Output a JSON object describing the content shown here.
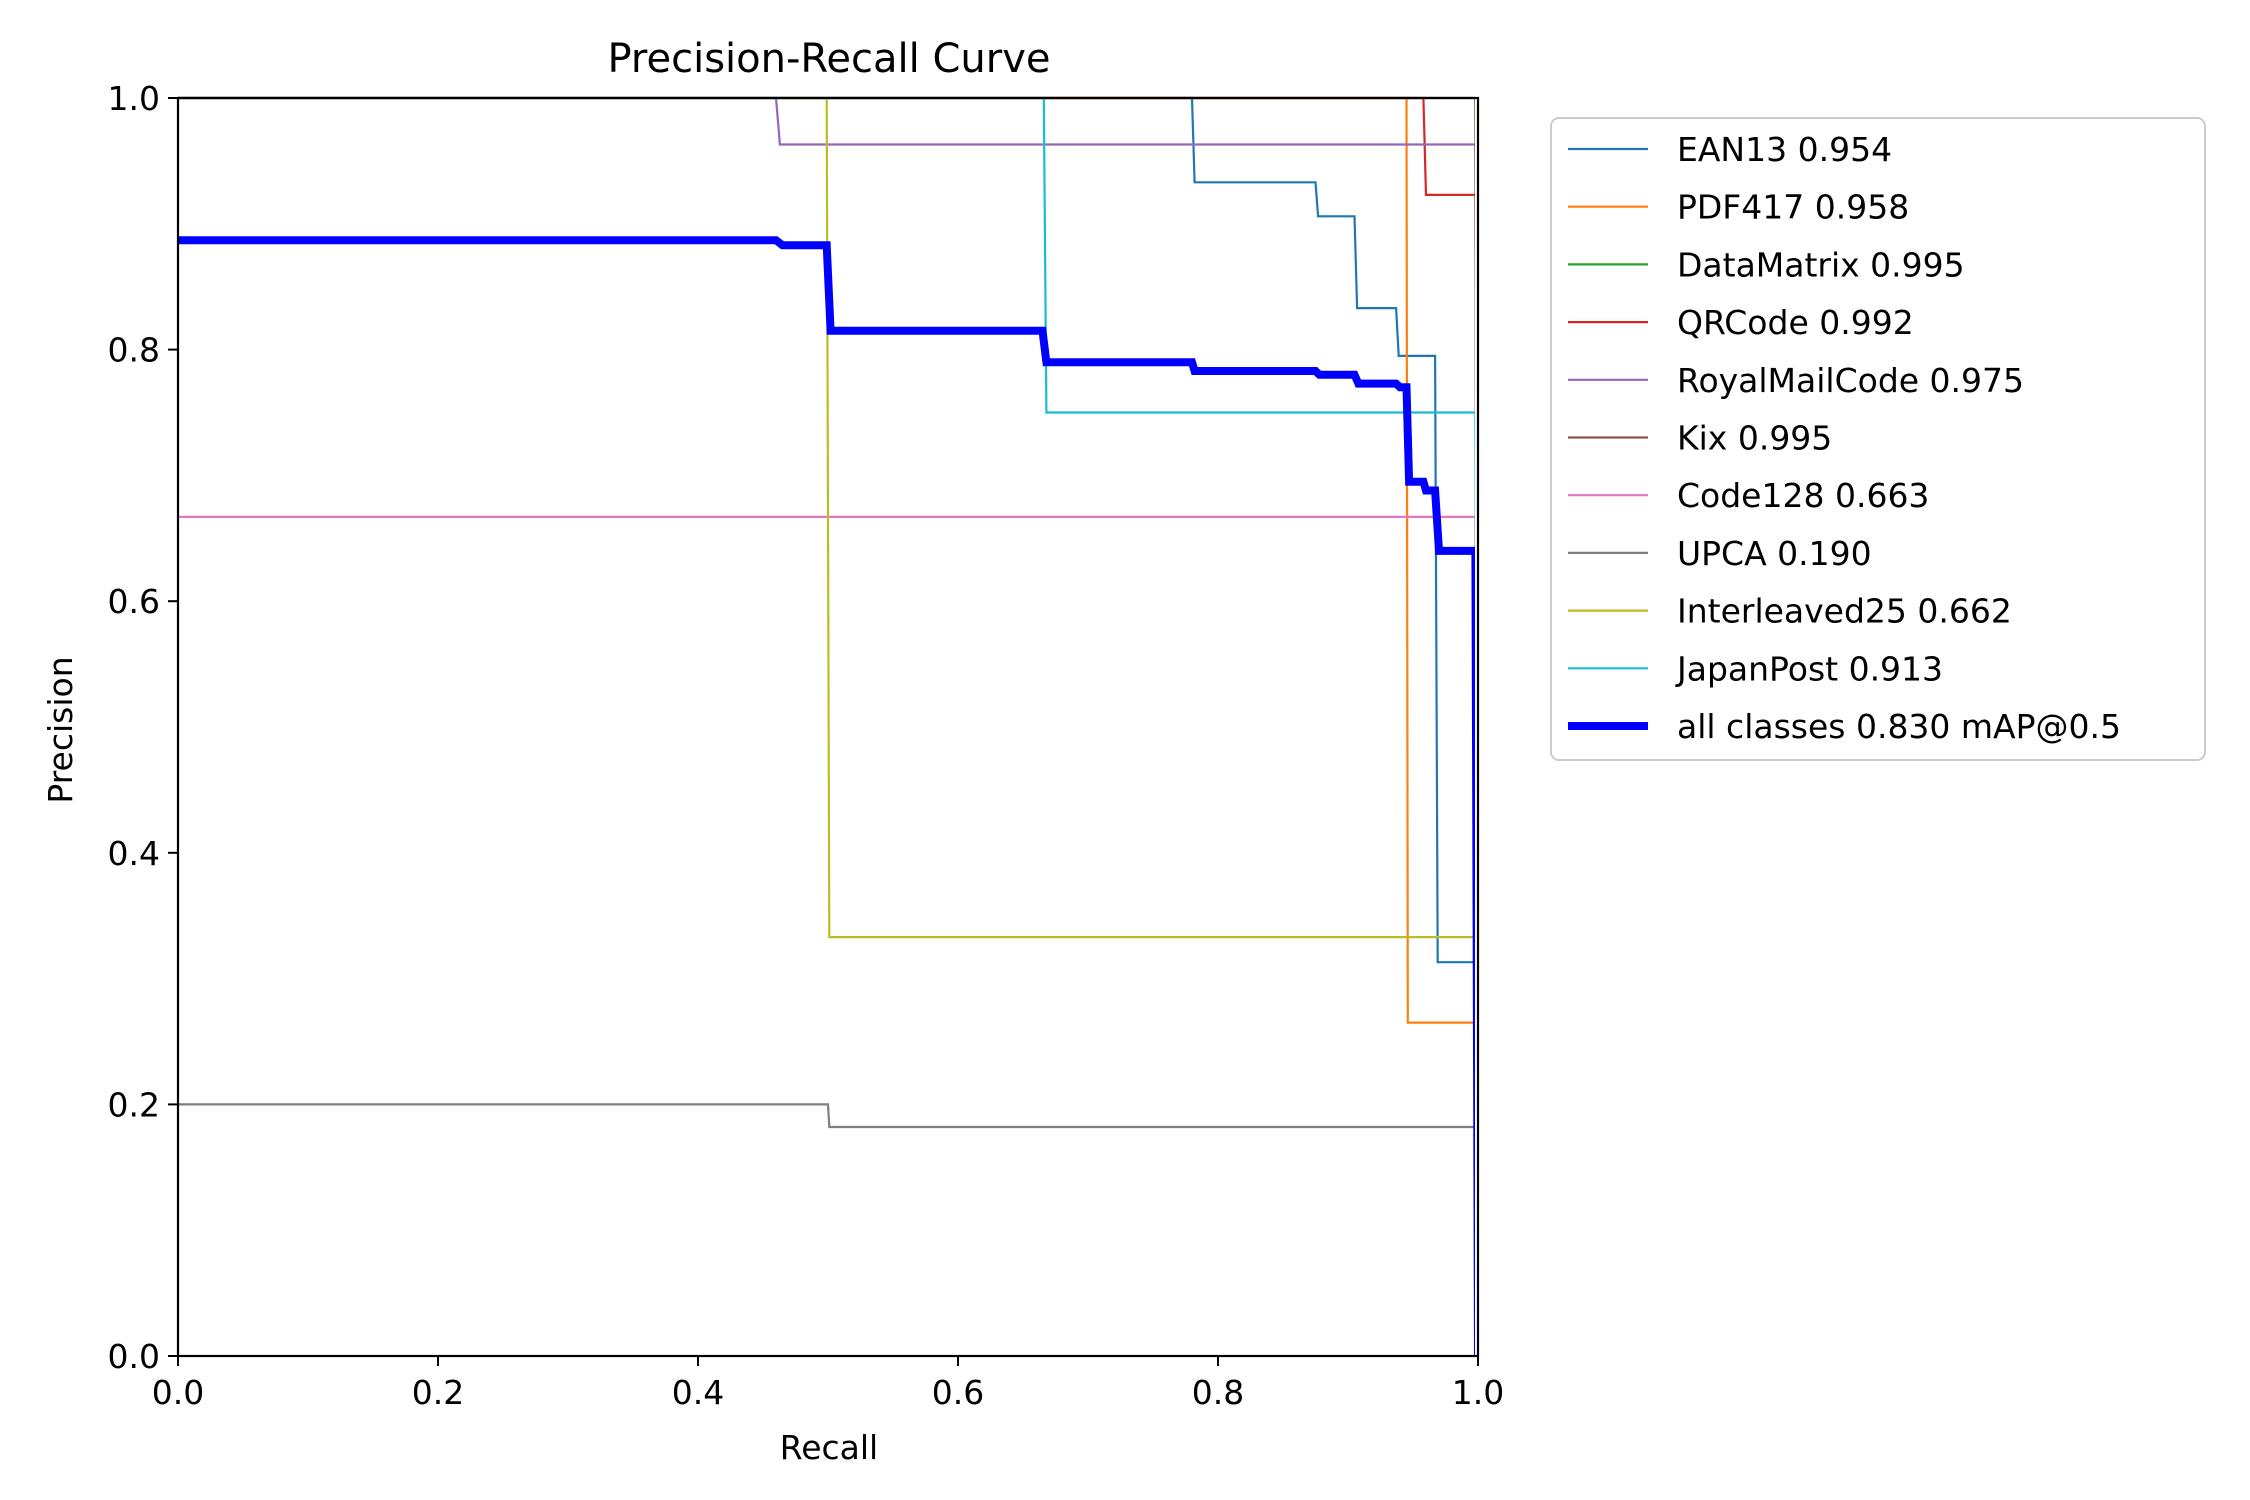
{
  "chart_data": {
    "type": "line",
    "title": "Precision-Recall Curve",
    "xlabel": "Recall",
    "ylabel": "Precision",
    "xlim": [
      0,
      1
    ],
    "ylim": [
      0,
      1
    ],
    "xticks": [
      0.0,
      0.2,
      0.4,
      0.6,
      0.8,
      1.0
    ],
    "yticks": [
      0.0,
      0.2,
      0.4,
      0.6,
      0.8,
      1.0
    ],
    "xtick_labels": [
      "0.0",
      "0.2",
      "0.4",
      "0.6",
      "0.8",
      "1.0"
    ],
    "ytick_labels": [
      "0.0",
      "0.2",
      "0.4",
      "0.6",
      "0.8",
      "1.0"
    ],
    "grid": false,
    "legend_position": "outside-right-top",
    "series": [
      {
        "name": "EAN13 0.954",
        "color": "#1f77b4",
        "bold": false,
        "x": [
          0,
          0.78,
          0.782,
          0.875,
          0.877,
          0.905,
          0.907,
          0.937,
          0.939,
          0.967,
          0.969,
          0.998,
          1.0
        ],
        "y": [
          1.0,
          1.0,
          0.933,
          0.933,
          0.906,
          0.906,
          0.833,
          0.833,
          0.795,
          0.795,
          0.313,
          0.313,
          0.0
        ]
      },
      {
        "name": "PDF417 0.958",
        "color": "#ff7f0e",
        "bold": false,
        "x": [
          0,
          0.945,
          0.946,
          0.998,
          1.0
        ],
        "y": [
          1.0,
          1.0,
          0.265,
          0.265,
          0.0
        ]
      },
      {
        "name": "DataMatrix 0.995",
        "color": "#2ca02c",
        "bold": false,
        "x": [
          0,
          0.998,
          1.0
        ],
        "y": [
          1.0,
          1.0,
          0.0
        ]
      },
      {
        "name": "QRCode 0.992",
        "color": "#d62728",
        "bold": false,
        "x": [
          0,
          0.958,
          0.96,
          0.998,
          1.0
        ],
        "y": [
          1.0,
          1.0,
          0.923,
          0.923,
          0.0
        ]
      },
      {
        "name": "RoyalMailCode 0.975",
        "color": "#9467bd",
        "bold": false,
        "x": [
          0,
          0.46,
          0.463,
          0.998,
          1.0
        ],
        "y": [
          1.0,
          1.0,
          0.963,
          0.963,
          0.0
        ]
      },
      {
        "name": "Kix 0.995",
        "color": "#8c564b",
        "bold": false,
        "x": [
          0,
          0.998,
          1.0
        ],
        "y": [
          1.0,
          1.0,
          0.0
        ]
      },
      {
        "name": "Code128 0.663",
        "color": "#e377c2",
        "bold": false,
        "x": [
          0,
          0.998,
          1.0
        ],
        "y": [
          0.667,
          0.667,
          0.0
        ]
      },
      {
        "name": "UPCA 0.190",
        "color": "#7f7f7f",
        "bold": false,
        "x": [
          0,
          0.5,
          0.501,
          0.998,
          1.0
        ],
        "y": [
          0.2,
          0.2,
          0.182,
          0.182,
          0.0
        ]
      },
      {
        "name": "Interleaved25 0.662",
        "color": "#bcbd22",
        "bold": false,
        "x": [
          0,
          0.499,
          0.501,
          0.998,
          1.0
        ],
        "y": [
          1.0,
          1.0,
          0.333,
          0.333,
          0.0
        ]
      },
      {
        "name": "JapanPost 0.913",
        "color": "#17becf",
        "bold": false,
        "x": [
          0,
          0.666,
          0.668,
          0.998,
          1.0
        ],
        "y": [
          1.0,
          1.0,
          0.75,
          0.75,
          0.0
        ]
      },
      {
        "name": "all classes 0.830 mAP@0.5",
        "color": "#0000ff",
        "bold": true,
        "x": [
          0,
          0.46,
          0.465,
          0.499,
          0.502,
          0.665,
          0.668,
          0.78,
          0.782,
          0.875,
          0.878,
          0.905,
          0.908,
          0.937,
          0.94,
          0.945,
          0.947,
          0.958,
          0.96,
          0.967,
          0.97,
          0.998,
          1.0
        ],
        "y": [
          0.887,
          0.887,
          0.883,
          0.883,
          0.815,
          0.815,
          0.79,
          0.79,
          0.783,
          0.783,
          0.78,
          0.78,
          0.773,
          0.773,
          0.77,
          0.77,
          0.695,
          0.695,
          0.688,
          0.688,
          0.64,
          0.64,
          0.0
        ]
      }
    ]
  }
}
